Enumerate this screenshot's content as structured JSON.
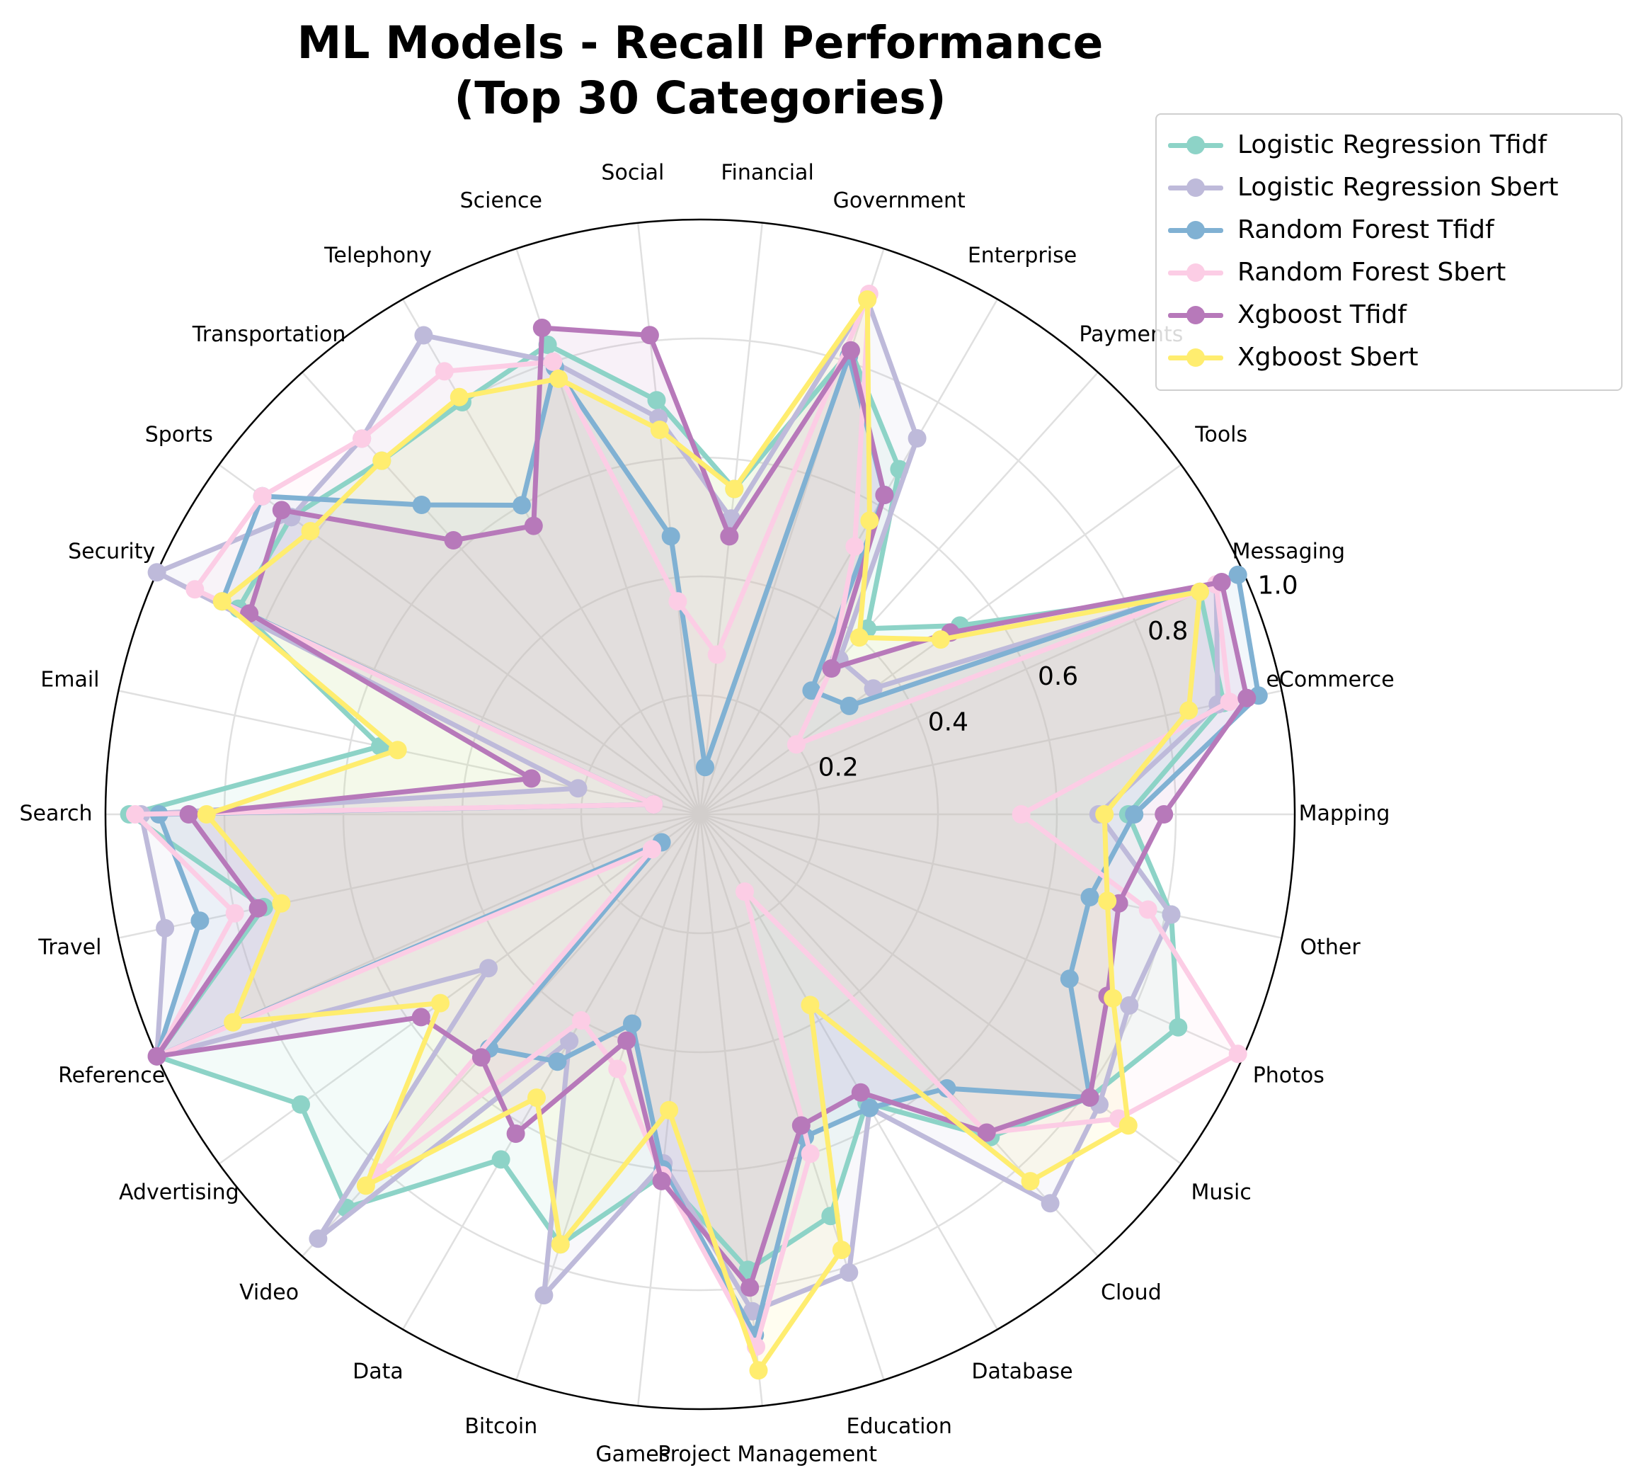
{
  "chart_data": {
    "type": "radar",
    "title": "ML Models - Recall Performance\n(Top 30 Categories)",
    "categories": [
      "Mapping",
      "eCommerce",
      "Messaging",
      "Tools",
      "Payments",
      "Enterprise",
      "Government",
      "Financial",
      "Social",
      "Science",
      "Telephony",
      "Transportation",
      "Sports",
      "Security",
      "Email",
      "Search",
      "Travel",
      "Reference",
      "Advertising",
      "Video",
      "Data",
      "Bitcoin",
      "Games",
      "Project Management",
      "Education",
      "Database",
      "Cloud",
      "Music",
      "Photos",
      "Other"
    ],
    "radial_ticks": [
      "0.2",
      "0.4",
      "0.6",
      "0.8",
      "1.0"
    ],
    "rlim": [
      0,
      1
    ],
    "grid": true,
    "legend_position": "upper-right",
    "series": [
      {
        "name": "Logistic Regression Tfidf",
        "color": "#8dd3c7",
        "values": [
          0.72,
          0.9,
          0.92,
          0.54,
          0.42,
          0.67,
          0.82,
          0.55,
          0.7,
          0.83,
          0.8,
          0.8,
          0.85,
          0.85,
          0.55,
          0.96,
          0.75,
          1.0,
          0.83,
          0.89,
          0.67,
          0.76,
          0.61,
          0.77,
          0.71,
          0.56,
          0.73,
          0.81,
          0.88,
          0.81
        ]
      },
      {
        "name": "Logistic Regression Sbert",
        "color": "#bebada",
        "values": [
          0.67,
          0.89,
          0.95,
          0.36,
          0.35,
          0.73,
          0.91,
          0.5,
          0.67,
          0.8,
          0.93,
          0.85,
          0.85,
          1.0,
          0.21,
          0.94,
          0.92,
          1.0,
          0.44,
          0.96,
          0.44,
          0.85,
          0.59,
          0.84,
          0.81,
          0.57,
          0.88,
          0.83,
          0.79,
          0.81
        ]
      },
      {
        "name": "Random Forest Tfidf",
        "color": "#80b1d3",
        "values": [
          0.73,
          0.96,
          0.99,
          0.31,
          0.28,
          0.62,
          0.81,
          0.08,
          0.47,
          0.79,
          0.6,
          0.7,
          0.91,
          0.88,
          0.08,
          0.91,
          0.86,
          1.0,
          0.08,
          0.53,
          0.48,
          0.37,
          0.6,
          0.88,
          0.57,
          0.57,
          0.62,
          0.81,
          0.68,
          0.67
        ]
      },
      {
        "name": "Random Forest Sbert",
        "color": "#fccde5",
        "values": [
          0.54,
          0.91,
          0.95,
          0.2,
          0.33,
          0.52,
          0.92,
          0.27,
          0.36,
          0.8,
          0.86,
          0.85,
          0.91,
          0.93,
          0.08,
          0.95,
          0.8,
          1.0,
          0.1,
          0.81,
          0.4,
          0.45,
          0.61,
          0.9,
          0.6,
          0.15,
          0.72,
          0.87,
          0.99,
          0.77
        ]
      },
      {
        "name": "Xgboost Tfidf",
        "color": "#b779ba",
        "values": [
          0.78,
          0.94,
          0.96,
          0.52,
          0.33,
          0.62,
          0.82,
          0.47,
          0.81,
          0.86,
          0.56,
          0.62,
          0.87,
          0.83,
          0.29,
          0.86,
          0.76,
          1.0,
          0.58,
          0.55,
          0.62,
          0.4,
          0.62,
          0.8,
          0.55,
          0.54,
          0.72,
          0.81,
          0.75,
          0.72
        ]
      },
      {
        "name": "Xgboost Sbert",
        "color": "#ffed6f",
        "values": [
          0.68,
          0.84,
          0.92,
          0.5,
          0.4,
          0.57,
          0.91,
          0.55,
          0.65,
          0.77,
          0.81,
          0.8,
          0.81,
          0.88,
          0.52,
          0.83,
          0.72,
          0.86,
          0.54,
          0.84,
          0.55,
          0.76,
          0.5,
          0.94,
          0.77,
          0.37,
          0.83,
          0.89,
          0.76,
          0.7
        ]
      }
    ]
  }
}
